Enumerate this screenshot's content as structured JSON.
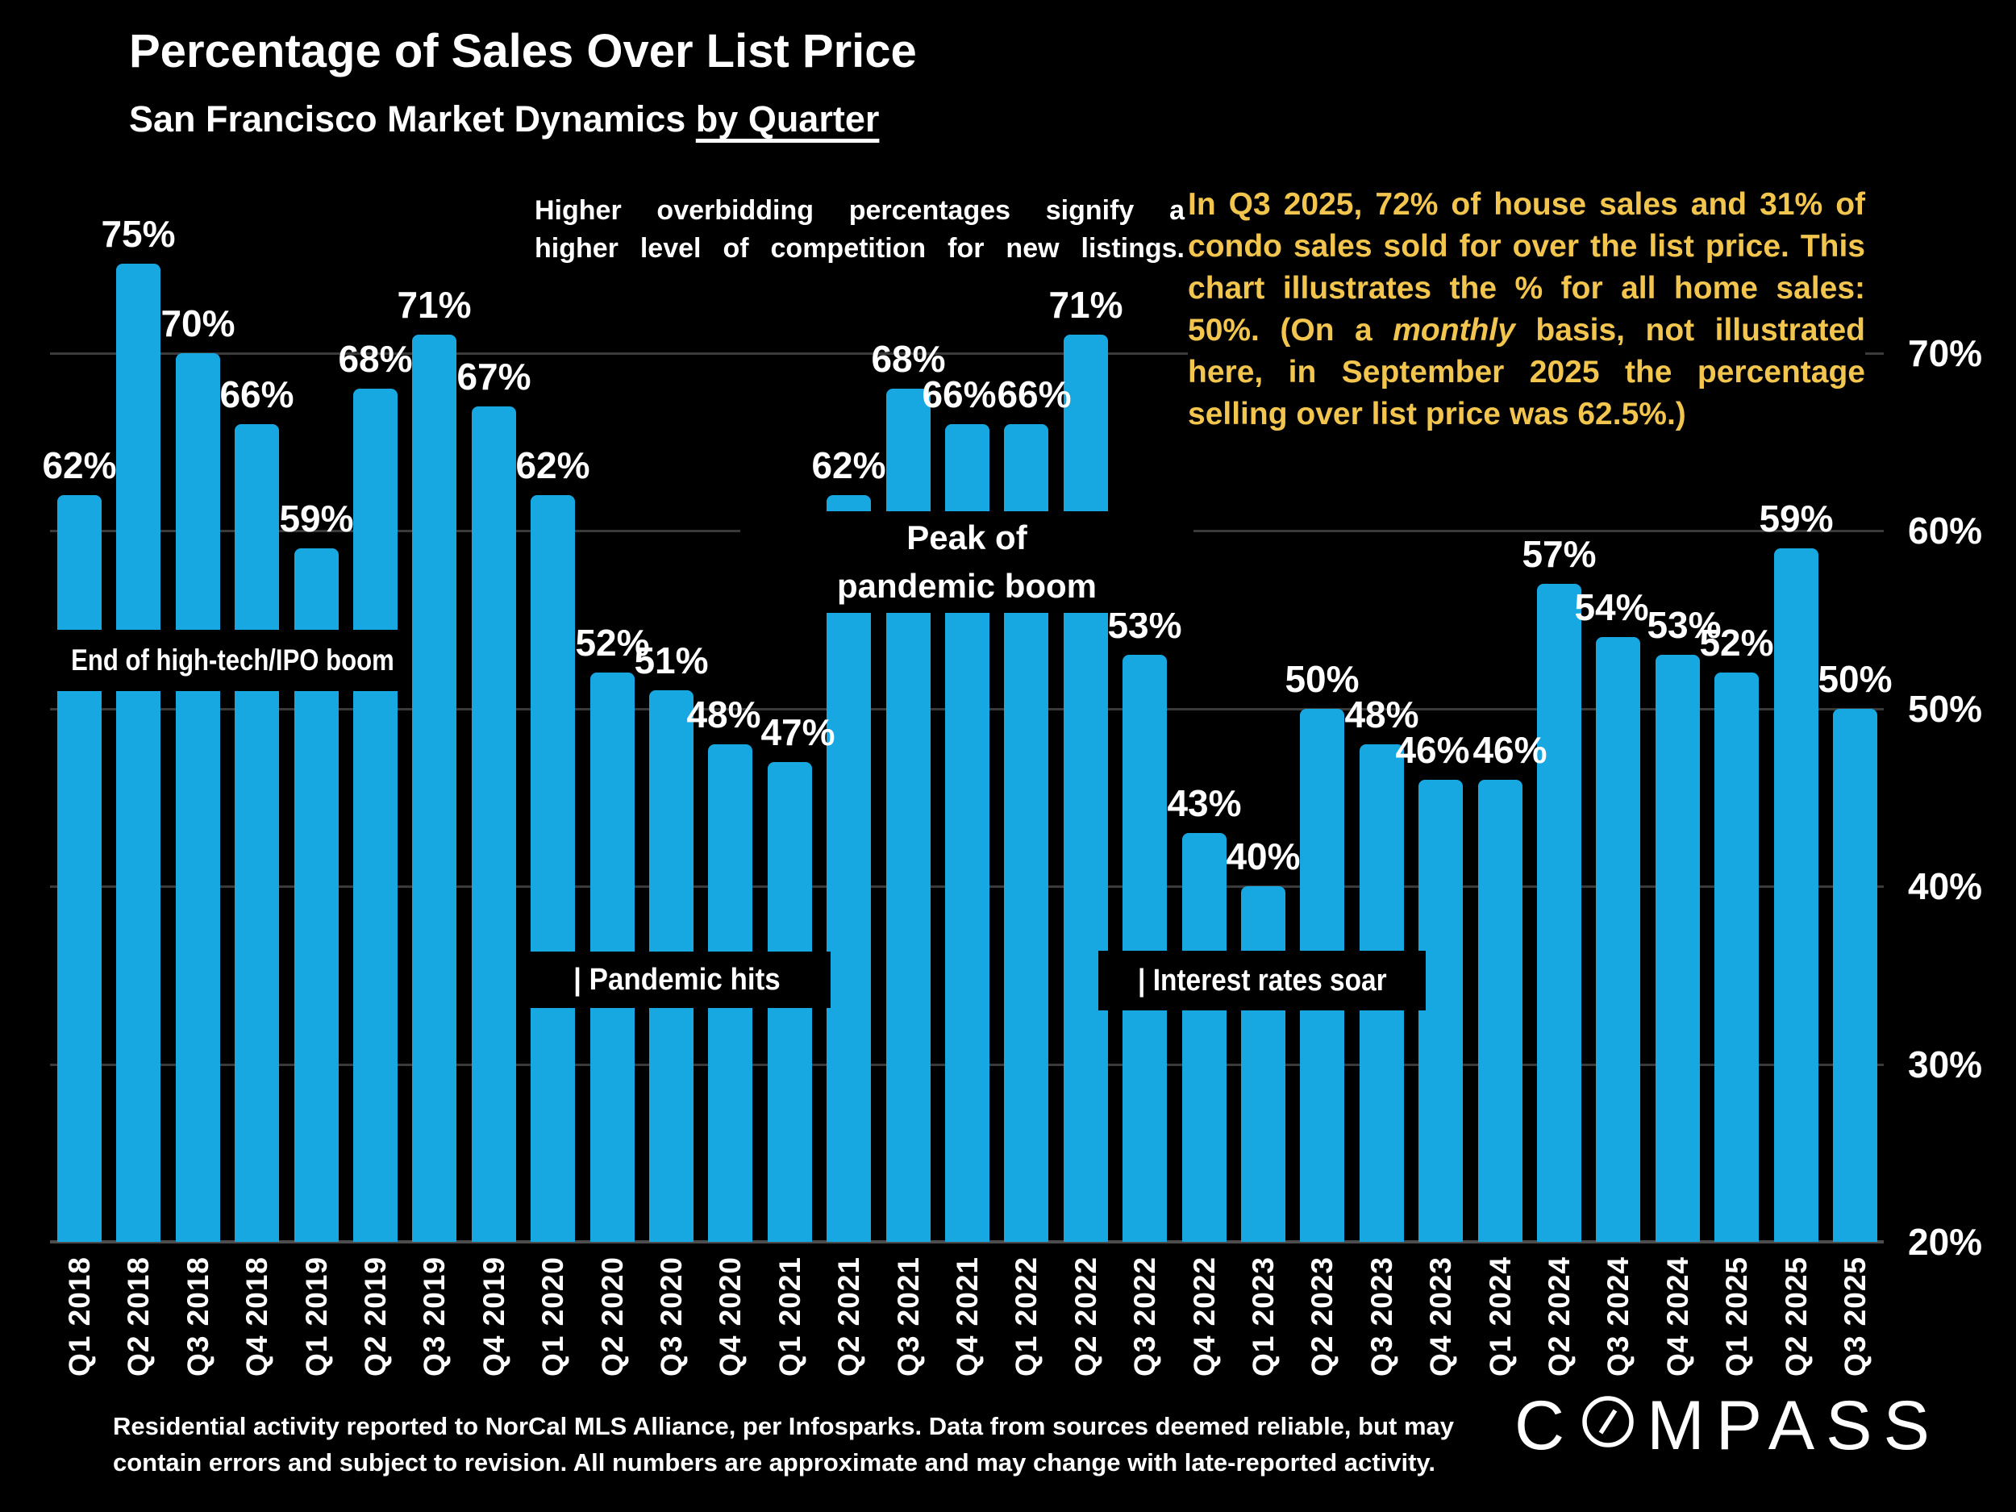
{
  "header": {
    "title": "Percentage of Sales Over List Price",
    "subtitle_prefix": "San Francisco Market Dynamics ",
    "subtitle_underline": "by Quarter"
  },
  "notes": {
    "white_line1": "Higher overbidding percentages signify a",
    "white_line2": "higher level of competition for new listings.",
    "yellow_part1": "In Q3 2025, 72% of house sales and 31% of condo sales sold for over the list price. This chart illustrates the % for all home sales: 50%. (On a ",
    "yellow_italic": "monthly",
    "yellow_part2": " basis, not illustrated here, in September 2025 the percentage selling over list price was 62.5%.)"
  },
  "annotations": {
    "ipo_boom": "End of high-tech/IPO boom",
    "peak_line1": "Peak of",
    "peak_line2": "pandemic boom",
    "pandemic_hits": "| Pandemic hits",
    "interest_rates": "| Interest rates soar"
  },
  "footer": {
    "line1": "Residential activity reported to NorCal MLS Alliance, per Infosparks. Data from sources deemed reliable, but may",
    "line2": "contain errors and subject to revision. All numbers are approximate and may change with late-reported activity."
  },
  "logo": {
    "pre": "C",
    "post": "MPASS"
  },
  "colors": {
    "background": "#000000",
    "bar": "#17A8E1",
    "accent_yellow": "#F2C54E",
    "gridline": "#3A3A3A",
    "baseline": "#4D4D4D",
    "text": "#FFFFFF"
  },
  "chart_data": {
    "type": "bar",
    "title": "Percentage of Sales Over List Price",
    "subtitle": "San Francisco Market Dynamics by Quarter",
    "categories": [
      "Q1 2018",
      "Q2 2018",
      "Q3 2018",
      "Q4 2018",
      "Q1 2019",
      "Q2 2019",
      "Q3 2019",
      "Q4 2019",
      "Q1 2020",
      "Q2 2020",
      "Q3 2020",
      "Q4 2020",
      "Q1 2021",
      "Q2 2021",
      "Q3 2021",
      "Q4 2021",
      "Q1 2022",
      "Q2 2022",
      "Q3 2022",
      "Q4 2022",
      "Q1 2023",
      "Q2 2023",
      "Q3 2023",
      "Q4 2023",
      "Q1 2024",
      "Q2 2024",
      "Q3 2024",
      "Q4 2024",
      "Q1 2025",
      "Q2 2025",
      "Q3 2025"
    ],
    "values": [
      62,
      75,
      70,
      66,
      59,
      68,
      71,
      67,
      62,
      52,
      51,
      48,
      47,
      62,
      68,
      66,
      66,
      71,
      53,
      43,
      40,
      50,
      48,
      46,
      46,
      57,
      54,
      53,
      52,
      59,
      50
    ],
    "unit": "%",
    "bar_labels": true,
    "ylim": [
      20,
      80
    ],
    "yticks": [
      70,
      60,
      50,
      40,
      30,
      20
    ],
    "grid": "horizontal",
    "legend": false,
    "label_dx": {
      "11": -8,
      "12": 10,
      "15": -10,
      "16": 10,
      "23": -10,
      "24": 12,
      "26": -8,
      "27": 8
    }
  }
}
